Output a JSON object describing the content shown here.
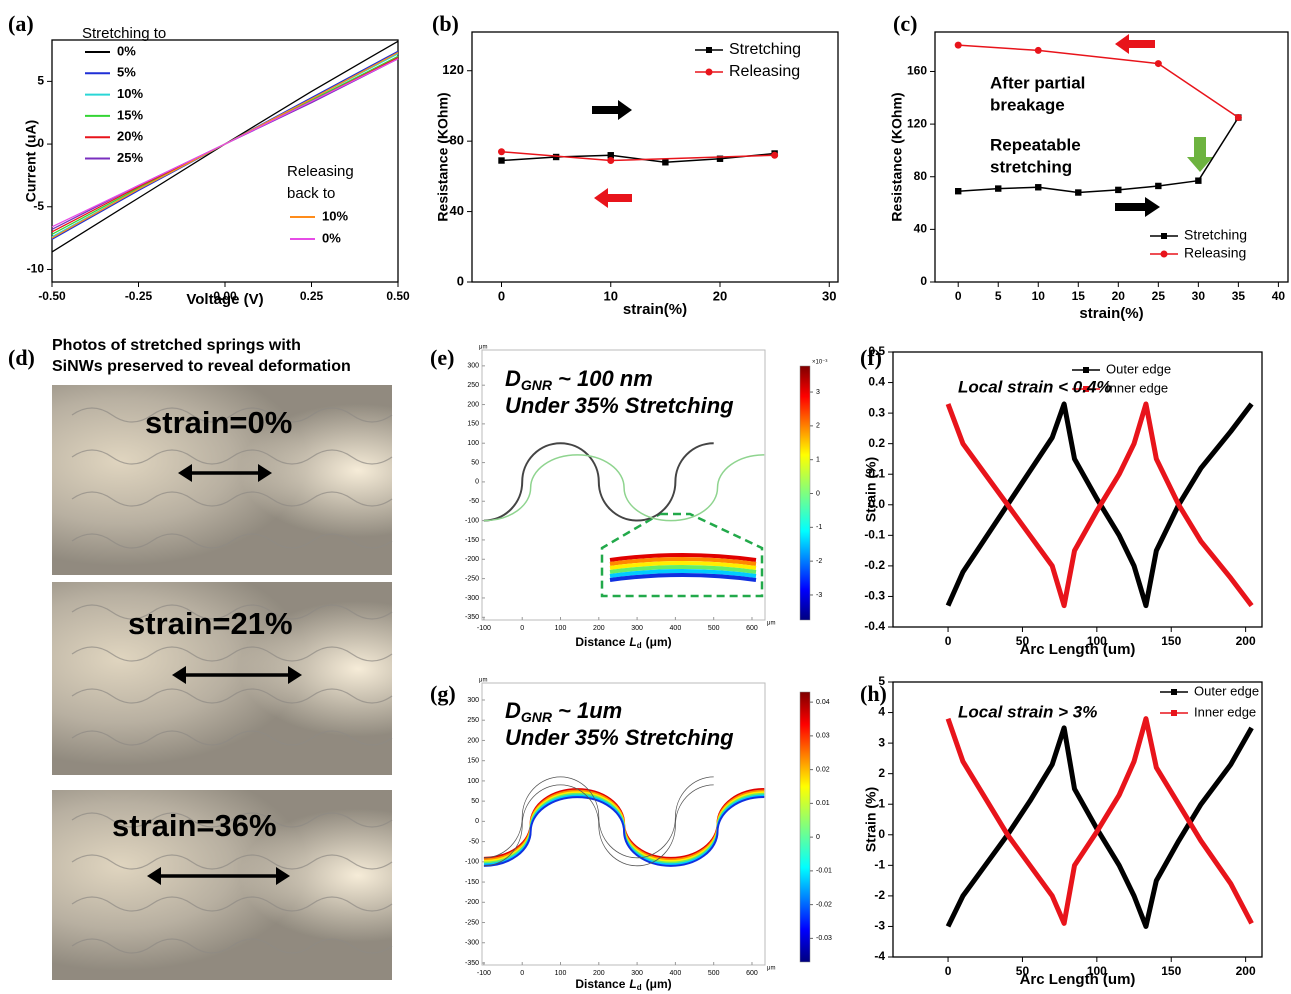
{
  "chart_data": [
    {
      "type": "line",
      "panel": "(a)",
      "xlabel": "Voltage (V)",
      "ylabel": "Current (uA)",
      "xlim": [
        -0.5,
        0.5
      ],
      "ylim": [
        -11,
        8.3
      ],
      "xticks": [
        {
          "value": -0.5,
          "label": "-0.50"
        },
        {
          "value": -0.25,
          "label": "-0.25"
        },
        {
          "value": 0,
          "label": "0.00"
        },
        {
          "value": 0.25,
          "label": "0.25"
        },
        {
          "value": 0.5,
          "label": "0.50"
        }
      ],
      "yticks": [
        -10,
        -5,
        0,
        5
      ],
      "legend_title": "Stretching to",
      "legend_title_2": [
        "Releasing",
        "back to"
      ],
      "series": [
        {
          "name": "0%",
          "color": "#000000",
          "x": [
            -0.5,
            -0.25,
            0,
            0.25,
            0.5
          ],
          "values": [
            -8.6,
            -4.3,
            0,
            4.2,
            8.2
          ]
        },
        {
          "name": "5%",
          "color": "#1f2fd6",
          "x": [
            -0.5,
            -0.25,
            0,
            0.25,
            0.5
          ],
          "values": [
            -7.6,
            -3.7,
            0,
            3.7,
            7.4
          ]
        },
        {
          "name": "10%",
          "color": "#2ad6d6",
          "x": [
            -0.5,
            -0.25,
            0,
            0.25,
            0.5
          ],
          "values": [
            -7.4,
            -3.6,
            0,
            3.6,
            7.2
          ]
        },
        {
          "name": "15%",
          "color": "#34d534",
          "x": [
            -0.5,
            -0.25,
            0,
            0.25,
            0.5
          ],
          "values": [
            -7.2,
            -3.5,
            0,
            3.5,
            7.0
          ]
        },
        {
          "name": "20%",
          "color": "#e8141b",
          "x": [
            -0.5,
            -0.25,
            0,
            0.25,
            0.5
          ],
          "values": [
            -7.0,
            -3.4,
            0,
            3.4,
            6.9
          ]
        },
        {
          "name": "25%",
          "color": "#7a2fbf",
          "x": [
            -0.5,
            -0.25,
            0,
            0.25,
            0.5
          ],
          "values": [
            -6.8,
            -3.3,
            0,
            3.3,
            6.8
          ]
        }
      ],
      "series_2": [
        {
          "name": "10%",
          "color": "#ff8c1a",
          "x": [
            -0.5,
            -0.25,
            0,
            0.25,
            0.5
          ],
          "values": [
            -7.5,
            -3.6,
            0,
            3.6,
            7.3
          ]
        },
        {
          "name": "0%",
          "color": "#e64ce6",
          "x": [
            -0.5,
            -0.25,
            0,
            0.25,
            0.5
          ],
          "values": [
            -6.6,
            -3.3,
            0,
            3.4,
            6.8
          ]
        }
      ]
    },
    {
      "type": "line",
      "panel": "(b)",
      "xlabel": "strain(%)",
      "ylabel": "Resistance (KOhm)",
      "xlim": [
        -2.7,
        30.8
      ],
      "ylim": [
        0,
        142
      ],
      "xticks": [
        0,
        10,
        20,
        30
      ],
      "yticks": [
        0,
        40,
        80,
        120
      ],
      "legend": "upper right",
      "series": [
        {
          "name": "Stretching",
          "color": "#000000",
          "marker": "square",
          "x": [
            0,
            5,
            10,
            15,
            20,
            25
          ],
          "values": [
            69,
            71,
            72,
            68,
            70,
            73
          ]
        },
        {
          "name": "Releasing",
          "color": "#e8141b",
          "marker": "circle",
          "x": [
            0,
            10,
            25
          ],
          "values": [
            74,
            69,
            72
          ]
        }
      ]
    },
    {
      "type": "line",
      "panel": "(c)",
      "xlabel": "strain(%)",
      "ylabel": "Resistance (KOhm)",
      "xlim": [
        -2.9,
        41.2
      ],
      "ylim": [
        0,
        190
      ],
      "xticks": [
        0,
        5,
        10,
        15,
        20,
        25,
        30,
        35,
        40
      ],
      "yticks": [
        0,
        40,
        80,
        120,
        160
      ],
      "legend": "lower right",
      "annotations": [
        {
          "lines": [
            "After partial",
            "breakage"
          ],
          "color": "#e8141b"
        },
        {
          "lines": [
            "Repeatable",
            "stretching"
          ],
          "color": "#000000"
        }
      ],
      "series": [
        {
          "name": "Stretching",
          "color": "#000000",
          "marker": "square",
          "x": [
            0,
            5,
            10,
            15,
            20,
            25,
            30,
            35
          ],
          "values": [
            69,
            71,
            72,
            68,
            70,
            73,
            77,
            125
          ]
        },
        {
          "name": "Releasing",
          "color": "#e8141b",
          "marker": "circle",
          "x": [
            0,
            10,
            25,
            35
          ],
          "values": [
            180,
            176,
            166,
            125
          ]
        }
      ]
    },
    {
      "type": "photos",
      "panel": "(d)",
      "title_lines": [
        "Photos of stretched springs with",
        "SiNWs preserved to reveal deformation"
      ],
      "labels": [
        "strain=0%",
        "strain=21%",
        "strain=36%"
      ]
    },
    {
      "type": "simulation",
      "panel": "(e)",
      "title": {
        "var": "D",
        "sub": "GNR",
        "rest": "~ 100 nm"
      },
      "subtitle": "Under 35% Stretching",
      "xlabel": {
        "text": "Distance",
        "var": "L",
        "sub": "d",
        "unit": "(μm)"
      },
      "unit": "μm",
      "xlim": [
        -105,
        634
      ],
      "ylim": [
        -357,
        341
      ],
      "xticks": [
        -100,
        0,
        100,
        200,
        300,
        400,
        500,
        600
      ],
      "yticks": [
        300,
        250,
        200,
        150,
        100,
        50,
        0,
        -50,
        -100,
        -150,
        -200,
        -250,
        -300,
        -350
      ],
      "clim": [
        -3.74,
        3.77
      ],
      "cticks": [
        3,
        2,
        1,
        0,
        -1,
        -2,
        -3
      ],
      "cscale": "×10⁻³"
    },
    {
      "type": "line",
      "panel": "(f)",
      "xlabel": "Arc Length (um)",
      "ylabel": "Strain (%)",
      "xlim": [
        -37,
        211
      ],
      "ylim": [
        -0.4,
        0.5
      ],
      "xticks": [
        0,
        50,
        100,
        150,
        200
      ],
      "yticks": [
        0.5,
        0.4,
        0.3,
        0.2,
        0.1,
        {
          "value": 0,
          "label": "0.0"
        },
        -0.1,
        -0.2,
        -0.3,
        -0.4
      ],
      "legend": "upper right",
      "annotations": [
        {
          "lines": [
            "Local strain < 0.4%"
          ],
          "color": "#7b2fa8"
        }
      ],
      "series": [
        {
          "name": "Outer edge",
          "color": "#000000",
          "marker": "square",
          "x": [
            0,
            10,
            25,
            40,
            55,
            70,
            78,
            85,
            100,
            115,
            125,
            133,
            140,
            155,
            170,
            190,
            204
          ],
          "values": [
            -0.33,
            -0.22,
            -0.11,
            0.0,
            0.11,
            0.22,
            0.33,
            0.15,
            0.02,
            -0.1,
            -0.2,
            -0.33,
            -0.15,
            0.0,
            0.12,
            0.24,
            0.33
          ]
        },
        {
          "name": "Inner edge",
          "color": "#e8141b",
          "marker": "square",
          "x": [
            0,
            10,
            25,
            40,
            55,
            70,
            78,
            85,
            100,
            115,
            125,
            133,
            140,
            155,
            170,
            190,
            204
          ],
          "values": [
            0.33,
            0.2,
            0.1,
            0.0,
            -0.1,
            -0.2,
            -0.33,
            -0.15,
            -0.02,
            0.1,
            0.2,
            0.33,
            0.15,
            0.0,
            -0.12,
            -0.24,
            -0.33
          ]
        }
      ]
    },
    {
      "type": "simulation",
      "panel": "(g)",
      "title": {
        "var": "D",
        "sub": "GNR",
        "rest": "~ 1um"
      },
      "subtitle": "Under 35% Stretching",
      "xlabel": {
        "text": "Distance",
        "var": "L",
        "sub": "d",
        "unit": "(μm)"
      },
      "unit": "μm",
      "xlim": [
        -105,
        634
      ],
      "ylim": [
        -355,
        342
      ],
      "xticks": [
        -100,
        0,
        100,
        200,
        300,
        400,
        500,
        600
      ],
      "yticks": [
        300,
        250,
        200,
        150,
        100,
        50,
        0,
        -50,
        -100,
        -150,
        -200,
        -250,
        -300,
        -350
      ],
      "clim": [
        -0.037,
        0.043
      ],
      "cticks": [
        0.04,
        0.03,
        0.02,
        0.01,
        0,
        -0.01,
        -0.02,
        -0.03
      ]
    },
    {
      "type": "line",
      "panel": "(h)",
      "xlabel": "Arc Length (um)",
      "ylabel": "Strain (%)",
      "xlim": [
        -37,
        211
      ],
      "ylim": [
        -4,
        5
      ],
      "xticks": [
        0,
        50,
        100,
        150,
        200
      ],
      "yticks": [
        5,
        4,
        3,
        2,
        1,
        0,
        -1,
        -2,
        -3,
        -4
      ],
      "legend": "upper right",
      "annotations": [
        {
          "lines": [
            "Local strain > 3%"
          ],
          "color": "#7b2fa8"
        }
      ],
      "series": [
        {
          "name": "Outer edge",
          "color": "#000000",
          "marker": "square",
          "x": [
            0,
            10,
            25,
            40,
            55,
            70,
            78,
            85,
            100,
            115,
            125,
            133,
            140,
            155,
            170,
            190,
            204
          ],
          "values": [
            -3.0,
            -2.0,
            -1.0,
            0.0,
            1.1,
            2.3,
            3.5,
            1.5,
            0.2,
            -1.0,
            -2.0,
            -3.0,
            -1.5,
            -0.2,
            1.0,
            2.3,
            3.5
          ]
        },
        {
          "name": "Inner edge",
          "color": "#e8141b",
          "marker": "square",
          "x": [
            0,
            10,
            25,
            40,
            55,
            70,
            78,
            85,
            100,
            115,
            125,
            133,
            140,
            155,
            170,
            190,
            204
          ],
          "values": [
            3.8,
            2.4,
            1.2,
            0.0,
            -1.0,
            -2.0,
            -2.9,
            -1.0,
            0.1,
            1.3,
            2.4,
            3.8,
            2.2,
            1.0,
            -0.2,
            -1.6,
            -2.9
          ]
        }
      ]
    }
  ]
}
